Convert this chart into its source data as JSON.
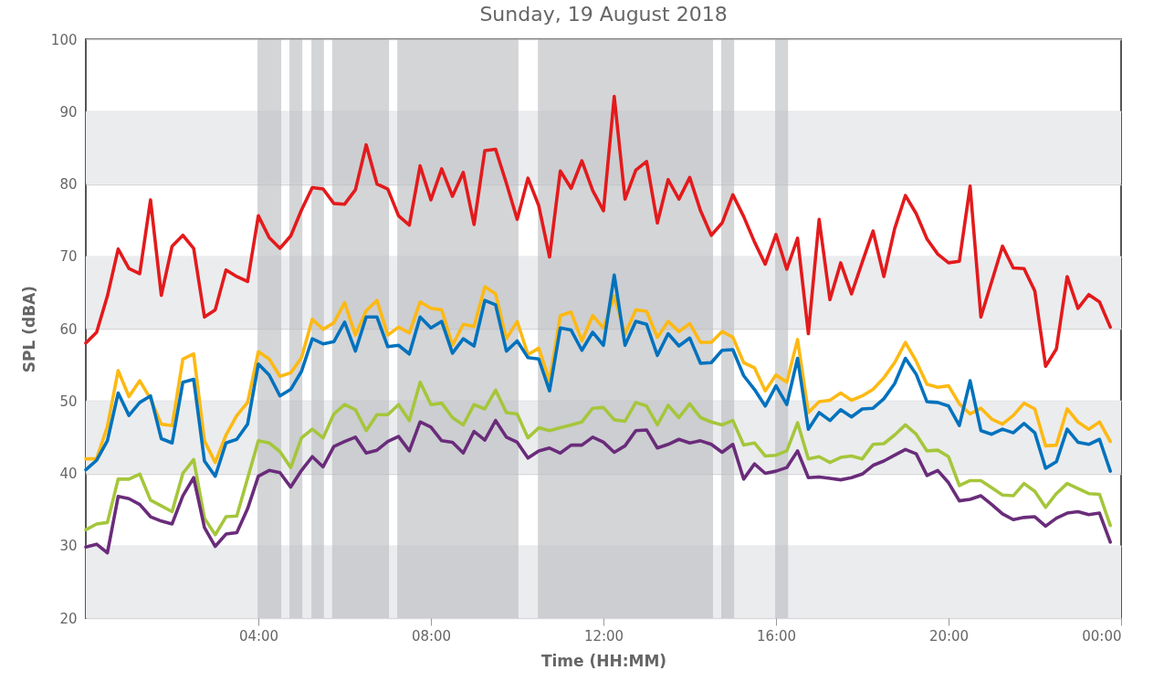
{
  "chart_data": {
    "type": "line",
    "title": "Sunday, 19 August 2018",
    "xlabel": "Time (HH:MM)",
    "ylabel": "SPL (dBA)",
    "x": [
      0,
      0.25,
      0.5,
      0.75,
      1,
      1.25,
      1.5,
      1.75,
      2,
      2.25,
      2.5,
      2.75,
      3,
      3.25,
      3.5,
      3.75,
      4,
      4.25,
      4.5,
      4.75,
      5,
      5.25,
      5.5,
      5.75,
      6,
      6.25,
      6.5,
      6.75,
      7,
      7.25,
      7.5,
      7.75,
      8,
      8.25,
      8.5,
      8.75,
      9,
      9.25,
      9.5,
      9.75,
      10,
      10.25,
      10.5,
      10.75,
      11,
      11.25,
      11.5,
      11.75,
      12,
      12.25,
      12.5,
      12.75,
      13,
      13.25,
      13.5,
      13.75,
      14,
      14.25,
      14.5,
      14.75,
      15,
      15.25,
      15.5,
      15.75,
      16,
      16.25,
      16.5,
      16.75,
      17,
      17.25,
      17.5,
      17.75,
      18,
      18.25,
      18.5,
      18.75,
      19,
      19.25,
      19.5,
      19.75,
      20,
      20.25,
      20.5,
      20.75,
      21,
      21.25,
      21.5,
      21.75,
      22,
      22.25,
      22.5,
      22.75,
      23,
      23.25,
      23.5,
      23.75
    ],
    "series": [
      {
        "color": "#e31a1c",
        "values": [
          58,
          59.5,
          64.5,
          71,
          68.3,
          67.6,
          77.8,
          64.6,
          71.4,
          72.9,
          71.1,
          61.6,
          62.6,
          68.1,
          67.2,
          66.5,
          75.6,
          72.6,
          71.1,
          72.8,
          76.4,
          79.5,
          79.3,
          77.3,
          77.2,
          79.2,
          85.4,
          80,
          79.3,
          75.6,
          74.3,
          82.5,
          77.8,
          82.1,
          78.3,
          81.6,
          74.4,
          84.6,
          84.8,
          80.1,
          75.1,
          80.8,
          77,
          69.9,
          81.8,
          79.4,
          83.2,
          79.1,
          76.3,
          92.1,
          77.9,
          81.9,
          83.1,
          74.6,
          80.6,
          77.9,
          80.9,
          76.3,
          72.9,
          74.6,
          78.5,
          75.5,
          72,
          68.9,
          73,
          68.2,
          72.5,
          59.3,
          75.1,
          64,
          69.1,
          64.8,
          69.2,
          73.5,
          67.2,
          73.8,
          78.4,
          75.9,
          72.4,
          70.3,
          69.1,
          69.3,
          79.7,
          61.6,
          66.5,
          71.4,
          68.4,
          68.3,
          65.2,
          54.8,
          57.2,
          67.2,
          62.8,
          64.7,
          63.7,
          60.2
        ]
      },
      {
        "color": "#fdb913",
        "values": [
          42,
          42,
          46.5,
          54.2,
          50.6,
          52.8,
          50.3,
          46.8,
          46.6,
          55.8,
          56.5,
          44.5,
          41.5,
          45.3,
          48,
          49.8,
          56.8,
          55.8,
          53.4,
          53.9,
          56,
          61.3,
          59.9,
          60.8,
          63.6,
          59.1,
          62.5,
          63.9,
          59.1,
          60.2,
          59.4,
          63.7,
          62.8,
          62.6,
          57.7,
          60.6,
          60.3,
          65.8,
          64.8,
          58.6,
          61,
          56.4,
          57.3,
          52.8,
          61.8,
          62.3,
          58.3,
          61.8,
          60.1,
          64.5,
          59.2,
          62.6,
          62.4,
          58.8,
          61,
          59.6,
          60.7,
          58.1,
          58.1,
          59.6,
          58.8,
          55.3,
          54.6,
          51.4,
          53.6,
          52.6,
          58.5,
          48.4,
          49.9,
          50.1,
          51.1,
          50.1,
          50.7,
          51.6,
          53.2,
          55.3,
          58.1,
          55.5,
          52.3,
          51.9,
          52.1,
          49.6,
          48.2,
          49,
          47.5,
          46.8,
          48,
          49.7,
          48.9,
          43.8,
          43.9,
          48.9,
          47.1,
          46.1,
          47.1,
          44.4
        ]
      },
      {
        "color": "#0072bd",
        "values": [
          40.5,
          41.8,
          44.5,
          51.1,
          48,
          49.8,
          50.7,
          44.8,
          44.2,
          52.6,
          53,
          41.7,
          39.6,
          44.2,
          44.7,
          46.8,
          55.1,
          53.6,
          50.7,
          51.6,
          54.1,
          58.6,
          57.9,
          58.2,
          60.9,
          56.9,
          61.6,
          61.6,
          57.5,
          57.7,
          56.5,
          61.6,
          60.1,
          61,
          56.6,
          58.6,
          57.6,
          63.9,
          63.3,
          56.9,
          58.3,
          56,
          55.8,
          51.4,
          60.1,
          59.8,
          57,
          59.5,
          57.7,
          67.4,
          57.7,
          61,
          60.6,
          56.3,
          59.3,
          57.6,
          58.7,
          55.2,
          55.3,
          57,
          57.1,
          53.5,
          51.6,
          49.3,
          52.1,
          49.5,
          55.9,
          46.1,
          48.4,
          47.3,
          48.8,
          47.8,
          48.9,
          49,
          50.3,
          52.4,
          55.9,
          53.7,
          49.9,
          49.8,
          49.3,
          46.6,
          52.8,
          45.9,
          45.4,
          46.1,
          45.6,
          46.9,
          45.6,
          40.7,
          41.6,
          46.1,
          44.3,
          44,
          44.7,
          40.3
        ]
      },
      {
        "color": "#a5c63b",
        "values": [
          32.2,
          33,
          33.2,
          39.2,
          39.2,
          39.9,
          36.3,
          35.5,
          34.7,
          40,
          41.9,
          33.8,
          31.5,
          34,
          34.1,
          39.3,
          44.5,
          44.2,
          43,
          40.8,
          44.9,
          46.1,
          44.9,
          48.2,
          49.5,
          48.8,
          45.9,
          48.1,
          48.1,
          49.5,
          47.3,
          52.6,
          49.5,
          49.7,
          47.7,
          46.7,
          49.5,
          48.9,
          51.5,
          48.4,
          48.2,
          44.9,
          46.3,
          45.9,
          46.3,
          46.7,
          47.1,
          49,
          49.1,
          47.4,
          47.2,
          49.8,
          49.3,
          46.7,
          49.4,
          47.7,
          49.6,
          47.7,
          47.1,
          46.7,
          47.3,
          43.9,
          44.2,
          42.4,
          42.5,
          43.1,
          47,
          42,
          42.3,
          41.5,
          42.2,
          42.4,
          42,
          44,
          44.1,
          45.3,
          46.7,
          45.4,
          43.1,
          43.2,
          42.3,
          38.3,
          39,
          39,
          38,
          37,
          36.9,
          38.6,
          37.5,
          35.3,
          37.2,
          38.6,
          37.9,
          37.2,
          37.1,
          32.8
        ]
      },
      {
        "color": "#6a2c7a",
        "values": [
          29.8,
          30.2,
          29,
          36.8,
          36.5,
          35.7,
          34,
          33.4,
          33,
          36.9,
          39.4,
          32.5,
          29.9,
          31.6,
          31.8,
          35.1,
          39.6,
          40.4,
          40.1,
          38.1,
          40.4,
          42.3,
          40.9,
          43.7,
          44.4,
          45,
          42.8,
          43.2,
          44.4,
          45.1,
          43.1,
          47.1,
          46.4,
          44.5,
          44.3,
          42.8,
          45.8,
          44.6,
          47.3,
          45,
          44.3,
          42.1,
          43.1,
          43.5,
          42.8,
          43.9,
          43.9,
          45,
          44.3,
          42.9,
          43.8,
          45.9,
          46,
          43.5,
          44,
          44.7,
          44.2,
          44.5,
          44,
          42.9,
          44,
          39.2,
          41.3,
          40,
          40.3,
          40.8,
          43.1,
          39.4,
          39.5,
          39.3,
          39.1,
          39.4,
          39.9,
          41.1,
          41.7,
          42.5,
          43.3,
          42.7,
          39.7,
          40.4,
          38.7,
          36.2,
          36.4,
          36.9,
          35.7,
          34.4,
          33.6,
          33.9,
          34,
          32.7,
          33.8,
          34.5,
          34.7,
          34.3,
          34.5,
          30.5
        ]
      }
    ],
    "xlim": [
      0,
      24
    ],
    "xticks": [
      {
        "value": 4,
        "label": "04:00"
      },
      {
        "value": 8,
        "label": "08:00"
      },
      {
        "value": 12,
        "label": "12:00"
      },
      {
        "value": 16,
        "label": "16:00"
      },
      {
        "value": 20,
        "label": "20:00"
      },
      {
        "value": 24,
        "label": "00:00"
      }
    ],
    "ylim": [
      20,
      100
    ],
    "yticks": [
      20,
      30,
      40,
      50,
      60,
      70,
      80,
      90,
      100
    ],
    "grid": "y",
    "bands": [
      {
        "axis": "y",
        "from": 20,
        "to": 30,
        "color": "#ebecee"
      },
      {
        "axis": "y",
        "from": 40,
        "to": 50,
        "color": "#ebecee"
      },
      {
        "axis": "y",
        "from": 60,
        "to": 70,
        "color": "#ebecee"
      },
      {
        "axis": "y",
        "from": 80,
        "to": 90,
        "color": "#ebecee"
      },
      {
        "axis": "x",
        "from": 3.98,
        "to": 4.53,
        "color": "#b9bbbf"
      },
      {
        "axis": "x",
        "from": 4.72,
        "to": 5.02,
        "color": "#b9bbbf"
      },
      {
        "axis": "x",
        "from": 5.23,
        "to": 5.52,
        "color": "#b9bbbf"
      },
      {
        "axis": "x",
        "from": 5.71,
        "to": 7.03,
        "color": "#b9bbbf"
      },
      {
        "axis": "x",
        "from": 7.22,
        "to": 10.03,
        "color": "#b9bbbf"
      },
      {
        "axis": "x",
        "from": 10.48,
        "to": 14.54,
        "color": "#b9bbbf"
      },
      {
        "axis": "x",
        "from": 14.73,
        "to": 15.03,
        "color": "#b9bbbf"
      },
      {
        "axis": "x",
        "from": 15.98,
        "to": 16.28,
        "color": "#b9bbbf"
      }
    ]
  }
}
